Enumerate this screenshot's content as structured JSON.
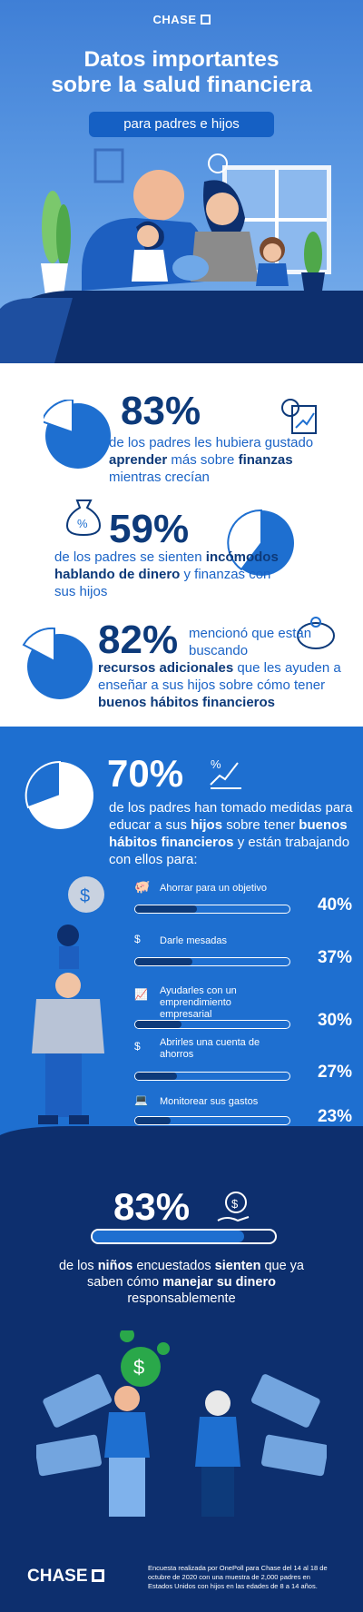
{
  "brand": "CHASE",
  "hero": {
    "title_line1": "Datos importantes",
    "title_line2": "sobre la salud financiera",
    "subtitle": "para padres e hijos"
  },
  "stats": [
    {
      "value": "83%",
      "text_parts": [
        "de los padres les hubiera gustado ",
        "aprender",
        " más sobre ",
        "finanzas",
        " mientras crecían"
      ],
      "pie_fraction": 0.83
    },
    {
      "value": "59%",
      "text_parts": [
        "de los padres se sienten ",
        "incómodos hablando de dinero",
        " y finanzas con sus hijos"
      ],
      "pie_fraction": 0.59
    },
    {
      "value": "82%",
      "text_parts": [
        "mencionó que están buscando ",
        "recursos adicionales",
        " que les ayuden a enseñar a sus hijos sobre cómo tener ",
        "buenos hábitos financieros"
      ],
      "pie_fraction": 0.82
    }
  ],
  "blue_section": {
    "value": "70%",
    "pie_fraction": 0.7,
    "text_parts": [
      "de los padres han tomado medidas para educar a sus ",
      "hijos",
      " sobre tener ",
      "buenos hábitos financieros",
      " y están trabajando con ellos para:"
    ],
    "bars": [
      {
        "label": "Ahorrar para un objetivo",
        "pct_label": "40%",
        "value": 0.4,
        "icon": "piggy-bank-icon"
      },
      {
        "label": "Darle mesadas",
        "pct_label": "37%",
        "value": 0.37,
        "icon": "hand-coin-icon"
      },
      {
        "label": "Ayudarles con un emprendimiento empresarial",
        "pct_label": "30%",
        "value": 0.3,
        "icon": "chart-icon"
      },
      {
        "label": "Abrirles una cuenta de ahorros",
        "pct_label": "27%",
        "value": 0.27,
        "icon": "coins-icon"
      },
      {
        "label": "Monitorear sus gastos",
        "pct_label": "23%",
        "value": 0.23,
        "icon": "laptop-chart-icon"
      }
    ]
  },
  "dark_section": {
    "value": "83%",
    "bar_value": 0.83,
    "text_parts": [
      "de los ",
      "niños",
      " encuestados ",
      "sienten",
      " que ya saben cómo ",
      "manejar su dinero",
      " responsablemente"
    ]
  },
  "footer": {
    "brand": "CHASE",
    "note": "Encuesta realizada por OnePoll para Chase del 14 al 18 de octubre de 2020 con una muestra de 2,000 padres en Estados Unidos con hijos en las edades de 8 a 14 años."
  },
  "colors": {
    "primary": "#1e6fd0",
    "dark": "#0d2f6e",
    "navy": "#0d3a7a",
    "accent": "#1a63c6"
  }
}
